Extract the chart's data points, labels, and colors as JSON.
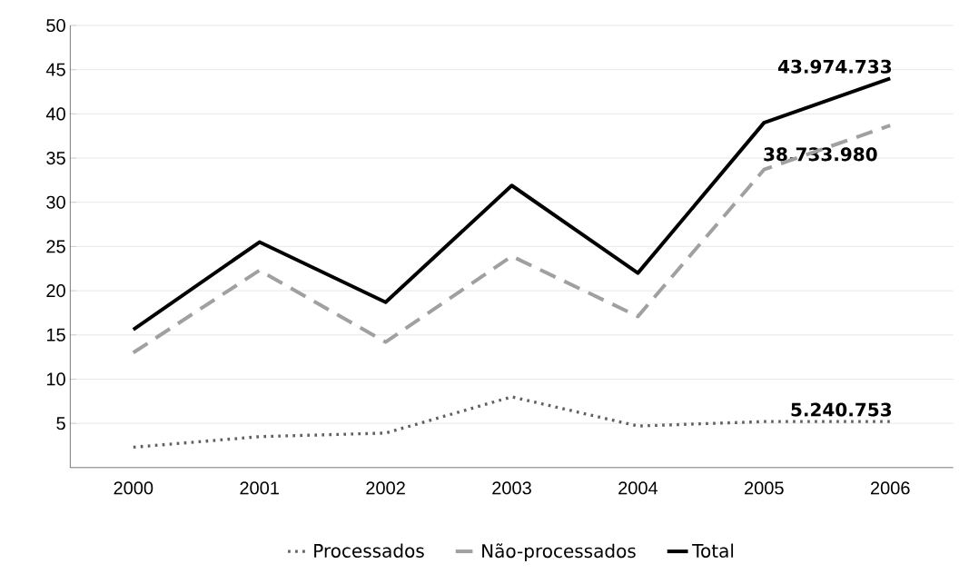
{
  "chart_data": {
    "type": "line",
    "categories": [
      "2000",
      "2001",
      "2002",
      "2003",
      "2004",
      "2005",
      "2006"
    ],
    "series": [
      {
        "name": "Processados",
        "color": "#606060",
        "line_style": "dotted",
        "values": [
          2.3,
          3.5,
          3.9,
          8.0,
          4.7,
          5.2,
          5.2
        ]
      },
      {
        "name": "Não-processados",
        "color": "#a0a0a0",
        "line_style": "dashed",
        "values": [
          13.0,
          22.3,
          14.2,
          23.9,
          17.1,
          33.7,
          38.7
        ]
      },
      {
        "name": "Total",
        "color": "#000000",
        "line_style": "solid",
        "values": [
          15.6,
          25.5,
          18.7,
          31.9,
          22.0,
          39.0,
          44.0
        ]
      }
    ],
    "annotations": [
      {
        "text": "43.974.733",
        "x": "2006",
        "y": 44.0
      },
      {
        "text": "38.733.980",
        "x": "2006",
        "y": 38.7
      },
      {
        "text": "5.240.753",
        "x": "2006",
        "y": 5.2
      }
    ],
    "ylim": [
      0,
      50
    ],
    "yticks": [
      5,
      10,
      15,
      20,
      25,
      30,
      35,
      40,
      45,
      50
    ],
    "grid": "y",
    "legend": "bottom",
    "marker": "none"
  }
}
